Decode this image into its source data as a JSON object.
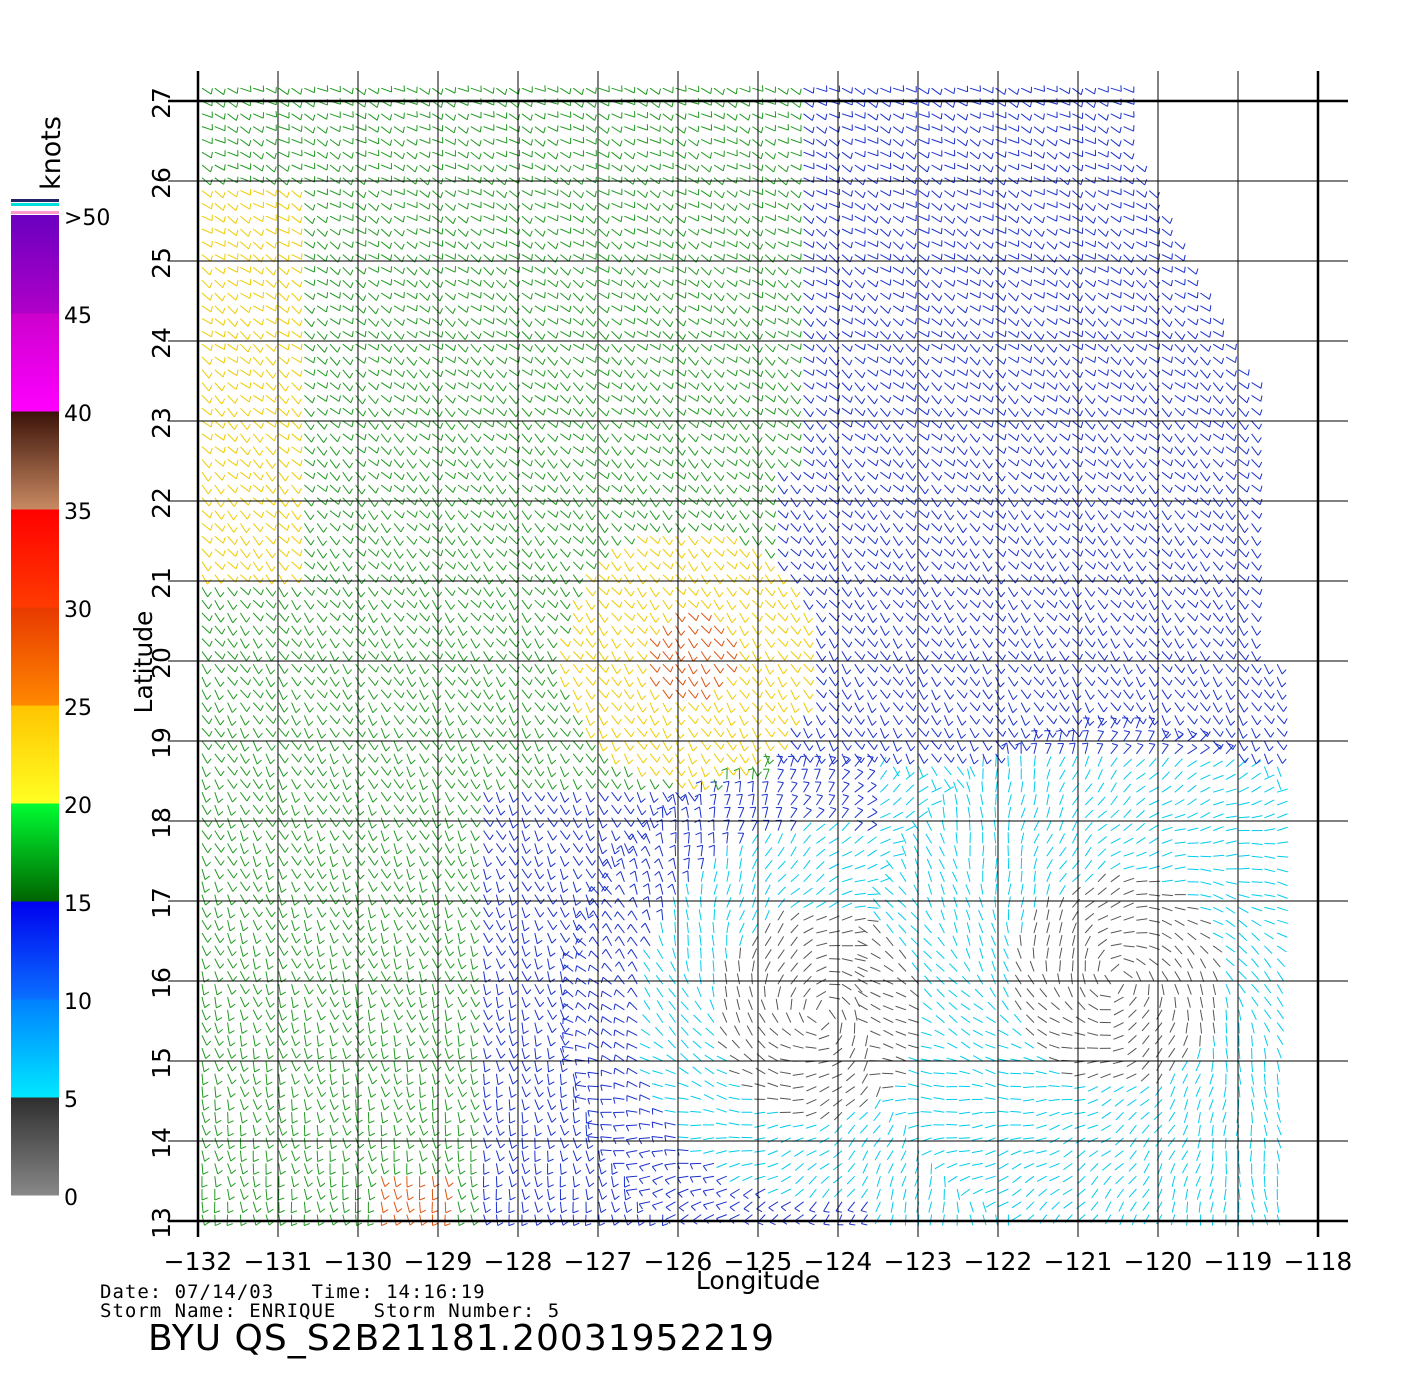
{
  "map": {
    "x_axis_label": "Longitude",
    "y_axis_label": "Latitude",
    "lon_ticks": [
      "-132",
      "-131",
      "-130",
      "-129",
      "-128",
      "-127",
      "-126",
      "-125",
      "-124",
      "-123",
      "-122",
      "-121",
      "-120",
      "-119",
      "-118"
    ],
    "lat_ticks": [
      "13",
      "14",
      "15",
      "16",
      "17",
      "18",
      "19",
      "20",
      "21",
      "22",
      "23",
      "24",
      "25",
      "26",
      "27"
    ],
    "lon_range": [
      -132,
      -118
    ],
    "lat_range": [
      13,
      27
    ],
    "grid": true
  },
  "colorbar": {
    "unit_label": "knots",
    "labels": [
      "0",
      "5",
      "10",
      "15",
      "20",
      "25",
      "30",
      "35",
      "40",
      "45",
      ">50"
    ],
    "segments": [
      {
        "from": 0,
        "to": 5,
        "colors": [
          "#888888",
          "#2e2e2e"
        ]
      },
      {
        "from": 5,
        "to": 10,
        "colors": [
          "#00e8ff",
          "#0080ff"
        ]
      },
      {
        "from": 10,
        "to": 15,
        "colors": [
          "#0a70ff",
          "#0000ee"
        ]
      },
      {
        "from": 15,
        "to": 20,
        "colors": [
          "#006400",
          "#00ff33"
        ]
      },
      {
        "from": 20,
        "to": 25,
        "colors": [
          "#ffff22",
          "#ffc400"
        ]
      },
      {
        "from": 25,
        "to": 30,
        "colors": [
          "#ff8800",
          "#e83800"
        ]
      },
      {
        "from": 30,
        "to": 35,
        "colors": [
          "#ff3b00",
          "#ff0000"
        ]
      },
      {
        "from": 35,
        "to": 40,
        "colors": [
          "#c98a62",
          "#3a1208"
        ]
      },
      {
        "from": 40,
        "to": 45,
        "colors": [
          "#ff00ff",
          "#cc00cc"
        ]
      },
      {
        "from": 45,
        "to": 50,
        "colors": [
          "#b000c8",
          "#6a00c0"
        ]
      }
    ]
  },
  "colors": {
    "calm": "#555555",
    "light": "#00ccee",
    "moderate": "#1a30cc",
    "fresh": "#229922",
    "strong": "#eecc00",
    "gale": "#dd5511"
  },
  "info": {
    "line1": "Date: 07/14/03   Time: 14:16:19",
    "line2": "Storm Name: ENRIQUE   Storm Number: 5",
    "title": "BYU QS_S2B21181.20031952219"
  }
}
